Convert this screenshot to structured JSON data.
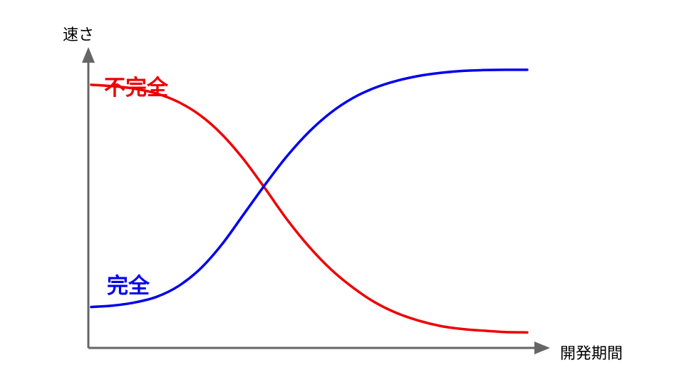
{
  "chart_data": {
    "type": "line",
    "title": "",
    "xlabel": "開発期間",
    "ylabel": "速さ",
    "xlim": [
      0,
      100
    ],
    "ylim": [
      0,
      100
    ],
    "grid": false,
    "axes_color": "#666666",
    "series": [
      {
        "name": "不完全",
        "color": "#ee0000",
        "x": [
          0,
          5,
          10,
          15,
          20,
          25,
          30,
          35,
          40,
          45,
          50,
          55,
          60,
          65,
          70,
          75,
          80,
          85,
          90,
          95,
          100
        ],
        "y": [
          92.7,
          92.2,
          91.3,
          89.6,
          86.6,
          81.9,
          75.1,
          66.2,
          55.7,
          44.8,
          35.3,
          27.3,
          20.9,
          15.7,
          11.9,
          9.2,
          7.3,
          6.2,
          5.6,
          5.1,
          5.0
        ]
      },
      {
        "name": "完全",
        "color": "#0000ee",
        "x": [
          0,
          5,
          10,
          15,
          20,
          25,
          30,
          35,
          40,
          45,
          50,
          55,
          60,
          65,
          70,
          75,
          80,
          85,
          90,
          95,
          100
        ],
        "y": [
          14.0,
          14.5,
          15.6,
          17.6,
          21.4,
          27.5,
          36.2,
          46.9,
          57.6,
          67.6,
          76.1,
          82.9,
          88.0,
          91.6,
          94.1,
          95.8,
          96.9,
          97.6,
          97.9,
          98.0,
          98.0
        ]
      }
    ]
  }
}
